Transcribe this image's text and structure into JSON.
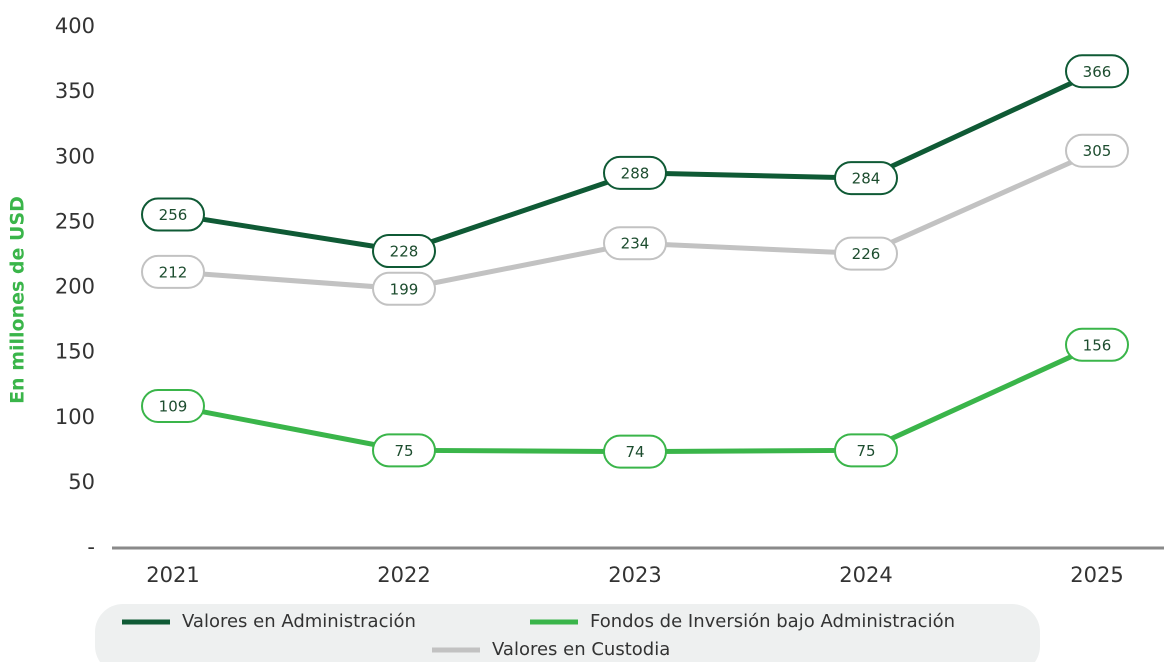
{
  "chart_data": {
    "type": "line",
    "ylabel": "En millones de USD",
    "categories": [
      "2021",
      "2022",
      "2023",
      "2024",
      "2025"
    ],
    "series": [
      {
        "name": "Valores en Administración",
        "color": "#0f5a35",
        "values": [
          256,
          228,
          288,
          284,
          366
        ]
      },
      {
        "name": "Fondos de Inversión bajo Administración",
        "color": "#3ab54a",
        "values": [
          109,
          75,
          74,
          75,
          156
        ]
      },
      {
        "name": "Valores en Custodia",
        "color": "#c2c2c2",
        "values": [
          212,
          199,
          234,
          226,
          305
        ]
      }
    ],
    "ylim": [
      0,
      400
    ],
    "yticks": [
      {
        "value": 0,
        "label": "-"
      },
      50,
      100,
      150,
      200,
      250,
      300,
      350,
      400
    ],
    "grid": false,
    "legend": "bottom"
  }
}
